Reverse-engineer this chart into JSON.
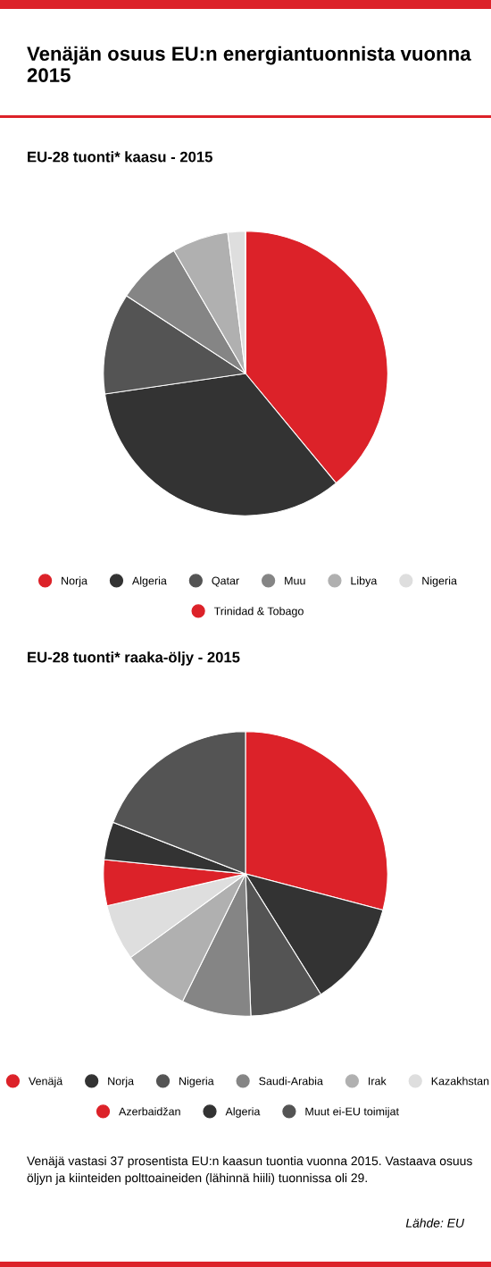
{
  "chart_data": [
    {
      "type": "pie",
      "title": "Venäjän osuus EU:n energiantuonnista vuonna 2015",
      "subtitle": "EU-28 tuonti* kaasu - 2015",
      "legend": "bottom",
      "categories": [
        "Norja",
        "Algeria",
        "Qatar",
        "Muu",
        "Libya",
        "Nigeria",
        "Trinidad & Tobago"
      ],
      "values": [
        39.0,
        33.7,
        11.5,
        7.4,
        6.4,
        2.0,
        0
      ],
      "colors": [
        "#dc2229",
        "#333333",
        "#545454",
        "#858585",
        "#b0b0b0",
        "#dedede",
        "#dc2229"
      ]
    },
    {
      "type": "pie",
      "title": "EU-28 tuonti* raaka-öljy - 2015",
      "legend": "bottom",
      "categories": [
        "Venäjä",
        "Norja",
        "Nigeria",
        "Saudi-Arabia",
        "Irak",
        "Kazakhstan",
        "Azerbaidžan",
        "Algeria",
        "Muut ei-EU toimijat"
      ],
      "values": [
        29.1,
        12.0,
        8.3,
        7.9,
        7.7,
        6.4,
        5.2,
        4.3,
        19.1
      ],
      "colors": [
        "#dc2229",
        "#333333",
        "#545454",
        "#858585",
        "#b0b0b0",
        "#dedede",
        "#dc2229",
        "#333333",
        "#545454"
      ],
      "annotations": [
        "Venäjä vastasi 37 prosentista EU:n kaasun tuontia vuonna 2015. Vastaava osuus öljyn ja kiinteiden polttoaineiden (lähinnä hiili) tuonnissa oli 29.",
        "Lähde: EU"
      ]
    }
  ]
}
